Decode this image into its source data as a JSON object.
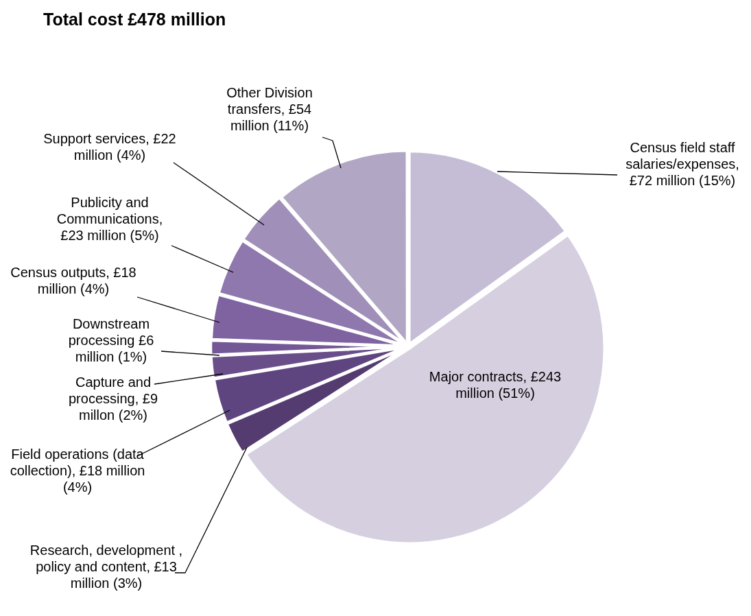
{
  "chart_data": {
    "type": "pie",
    "title": "Total cost £478 million",
    "categories": [
      "Census field staff salaries/expenses, £72 million (15%)",
      "Major contracts, £243 million (51%)",
      "Research, development , policy and content, £13 million (3%)",
      "Field operations (data collection), £18 million (4%)",
      "Capture and processing, £9 millon (2%)",
      "Downstream processing £6 million (1%)",
      "Census outputs, £18 million (4%)",
      "Publicity and Communications, £23 million (5%)",
      "Support services, £22 million (4%)",
      "Other Division transfers, £54 million (11%)"
    ],
    "values": [
      72,
      243,
      13,
      18,
      9,
      6,
      18,
      23,
      22,
      54
    ],
    "colors": [
      "#c5bdd6",
      "#d6cfe0",
      "#553c70",
      "#5f4580",
      "#6a4e8a",
      "#735796",
      "#7f62a0",
      "#8f78ad",
      "#a08fb8",
      "#b1a6c4"
    ],
    "legend": false
  }
}
